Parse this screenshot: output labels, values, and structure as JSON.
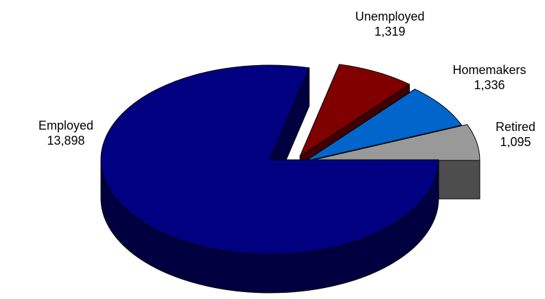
{
  "chart_data": {
    "type": "pie",
    "style": "3d-exploded",
    "title": "",
    "slices": [
      {
        "label": "Employed",
        "value": 13898,
        "value_label": "13,898",
        "top_color": "#000080",
        "side_color": "#000040"
      },
      {
        "label": "Unemployed",
        "value": 1319,
        "value_label": "1,319",
        "top_color": "#800000",
        "side_color": "#400000"
      },
      {
        "label": "Homemakers",
        "value": 1336,
        "value_label": "1,336",
        "top_color": "#0066CC",
        "side_color": "#003366"
      },
      {
        "label": "Retired",
        "value": 1095,
        "value_label": "1,095",
        "top_color": "#999999",
        "side_color": "#4D4D4D"
      }
    ]
  }
}
